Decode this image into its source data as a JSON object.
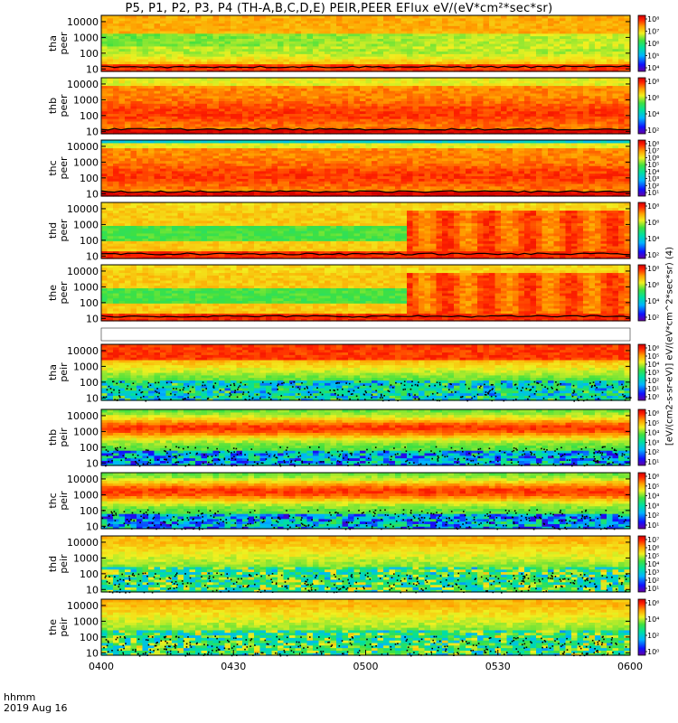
{
  "title": "P5, P1, P2, P3, P4 (TH-A,B,C,D,E) PEIR,PEER EFlux eV/(eV*cm²*sec*sr)",
  "colorbar_label": "[eV/(cm2-s-sr-eV)] eV/(eV*cm^2*sec*sr) (4)",
  "time_axis": {
    "label_1": "hhmm",
    "label_2": "2019 Aug 16"
  },
  "chart_data": {
    "type": "heatmap",
    "x": {
      "ticks": [
        "0400",
        "0430",
        "0500",
        "0530",
        "0600"
      ],
      "range": [
        "04:00",
        "06:00"
      ]
    },
    "y": {
      "scale": "log",
      "unit": "eV"
    },
    "panels": [
      {
        "label_probe": "tha",
        "label_type": "peer",
        "yticks": [
          "10",
          "100",
          "1000",
          "10000"
        ],
        "ylim": [
          7,
          25000
        ],
        "cbar_ticks": [
          "10⁴",
          "10⁵",
          "10⁶",
          "10⁷",
          "10⁸"
        ],
        "cbar_max": "10⁸",
        "profile": "peer_a"
      },
      {
        "label_probe": "thb",
        "label_type": "peer",
        "yticks": [
          "10",
          "100",
          "1000",
          "10000"
        ],
        "ylim": [
          7,
          25000
        ],
        "cbar_ticks": [
          "10²",
          "10⁴",
          "10⁶",
          "10⁸"
        ],
        "cbar_max": "10⁸",
        "profile": "peer_b"
      },
      {
        "label_probe": "thc",
        "label_type": "peer",
        "yticks": [
          "10",
          "100",
          "1000",
          "10000"
        ],
        "ylim": [
          7,
          25000
        ],
        "cbar_ticks": [
          "10¹",
          "10²",
          "10³",
          "10⁴",
          "10⁵",
          "10⁶",
          "10⁷",
          "10⁸"
        ],
        "cbar_max": "10⁸",
        "profile": "peer_c"
      },
      {
        "label_probe": "thd",
        "label_type": "peer",
        "yticks": [
          "10",
          "100",
          "1000",
          "10000"
        ],
        "ylim": [
          7,
          25000
        ],
        "cbar_ticks": [
          "10²",
          "10⁴",
          "10⁶",
          "10⁸"
        ],
        "cbar_max": "10⁸",
        "profile": "peer_d"
      },
      {
        "label_probe": "the",
        "label_type": "peer",
        "yticks": [
          "10",
          "100",
          "1000",
          "10000"
        ],
        "ylim": [
          7,
          25000
        ],
        "cbar_ticks": [
          "10²",
          "10⁴",
          "10⁶",
          "10⁸"
        ],
        "cbar_max": "10⁸",
        "profile": "peer_e"
      },
      {
        "label_probe": "tha",
        "label_type": "peir",
        "yticks": [
          "10",
          "100",
          "1000",
          "10000"
        ],
        "ylim": [
          7,
          25000
        ],
        "cbar_ticks": [
          "10⁰",
          "10¹",
          "10²",
          "10³",
          "10⁴",
          "10⁵",
          "10⁶"
        ],
        "cbar_max": "10⁶",
        "profile": "peir_a"
      },
      {
        "label_probe": "thb",
        "label_type": "peir",
        "yticks": [
          "10",
          "100",
          "1000",
          "10000"
        ],
        "ylim": [
          7,
          25000
        ],
        "cbar_ticks": [
          "10¹",
          "10²",
          "10³",
          "10⁴",
          "10⁵",
          "10⁶"
        ],
        "cbar_max": "10⁶",
        "profile": "peir_b"
      },
      {
        "label_probe": "thc",
        "label_type": "peir",
        "yticks": [
          "10",
          "100",
          "1000",
          "10000"
        ],
        "ylim": [
          7,
          25000
        ],
        "cbar_ticks": [
          "10¹",
          "10²",
          "10³",
          "10⁴",
          "10⁵",
          "10⁶"
        ],
        "cbar_max": "10⁶",
        "profile": "peir_c"
      },
      {
        "label_probe": "thd",
        "label_type": "peir",
        "yticks": [
          "10",
          "100",
          "1000",
          "10000"
        ],
        "ylim": [
          7,
          25000
        ],
        "cbar_ticks": [
          "10¹",
          "10²",
          "10³",
          "10⁴",
          "10⁵",
          "10⁶",
          "10⁷"
        ],
        "cbar_max": "10⁷",
        "profile": "peir_d"
      },
      {
        "label_probe": "the",
        "label_type": "peir",
        "yticks": [
          "10",
          "100",
          "1000",
          "10000"
        ],
        "ylim": [
          7,
          25000
        ],
        "cbar_ticks": [
          "10⁰",
          "10²",
          "10⁴",
          "10⁶"
        ],
        "cbar_max": "10⁶",
        "profile": "peir_e"
      }
    ]
  }
}
